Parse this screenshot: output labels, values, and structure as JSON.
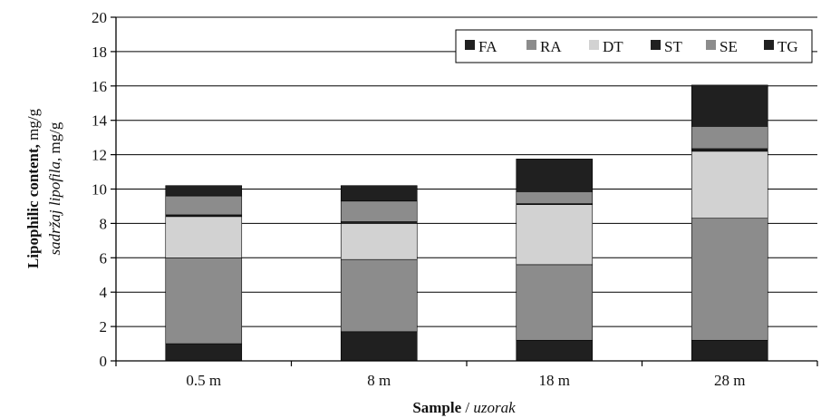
{
  "chart_data": {
    "type": "bar",
    "stacked": true,
    "categories": [
      "0.5 m",
      "8 m",
      "18 m",
      "28 m"
    ],
    "series": [
      {
        "name": "FA",
        "values": [
          1.0,
          1.7,
          1.2,
          1.2
        ]
      },
      {
        "name": "RA",
        "values": [
          5.0,
          4.2,
          4.4,
          7.1
        ]
      },
      {
        "name": "DT",
        "values": [
          2.4,
          2.1,
          3.5,
          3.9
        ]
      },
      {
        "name": "ST",
        "values": [
          0.1,
          0.1,
          0.05,
          0.15
        ]
      },
      {
        "name": "SE",
        "values": [
          1.1,
          1.2,
          0.7,
          1.3
        ]
      },
      {
        "name": "TG",
        "values": [
          0.6,
          0.9,
          1.9,
          2.4
        ]
      }
    ],
    "ylim": [
      0,
      20
    ],
    "yticks": [
      "0",
      "2",
      "4",
      "6",
      "8",
      "10",
      "12",
      "14",
      "16",
      "18",
      "20"
    ],
    "grid": true,
    "legend_position": "top-right",
    "colors": {
      "FA": "#202020",
      "RA": "#8c8c8c",
      "DT": "#d2d2d2",
      "ST": "#202020",
      "SE": "#8c8c8c",
      "TG": "#202020"
    },
    "ylabel": {
      "main": "Lipophilic content,",
      "main_unit": " mg/g",
      "sub": "sadržaj lipofila,",
      "sub_unit": " mg/g"
    },
    "xlabel": {
      "main": "Sample",
      "sep": " / ",
      "sub": "uzorak"
    }
  }
}
